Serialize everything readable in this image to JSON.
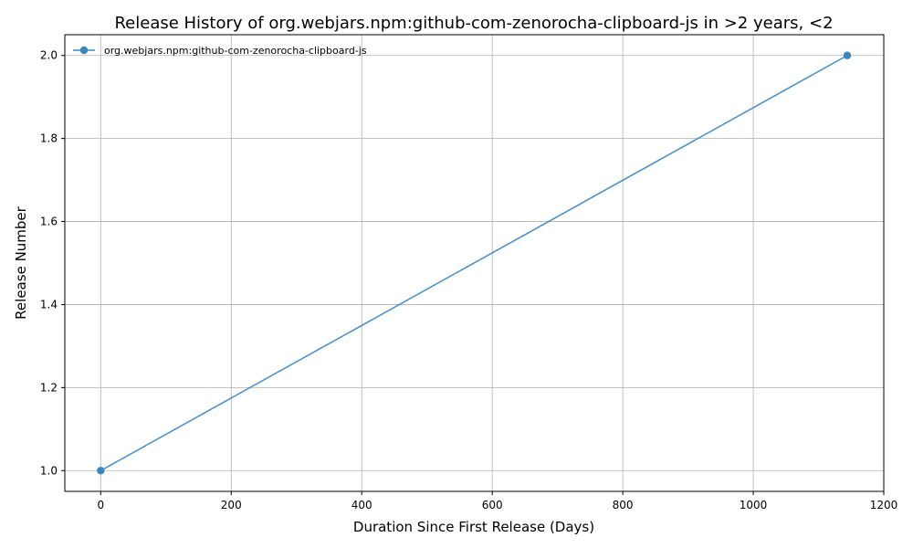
{
  "chart_data": {
    "type": "line",
    "title": "Release History of org.webjars.npm:github-com-zenorocha-clipboard-js in >2 years, <2",
    "xlabel": "Duration Since First Release (Days)",
    "ylabel": "Release Number",
    "xlim": [
      -55,
      1200
    ],
    "ylim": [
      0.95,
      2.05
    ],
    "xticks": [
      0,
      200,
      400,
      600,
      800,
      1000,
      1200
    ],
    "yticks": [
      1.0,
      1.2,
      1.4,
      1.6,
      1.8,
      2.0
    ],
    "xtick_labels": [
      "0",
      "200",
      "400",
      "600",
      "800",
      "1000",
      "1200"
    ],
    "ytick_labels": [
      "1.0",
      "1.2",
      "1.4",
      "1.6",
      "1.8",
      "2.0"
    ],
    "grid": true,
    "legend_position": "top-left",
    "series": [
      {
        "name": "org.webjars.npm:github-com-zenorocha-clipboard-js",
        "color": "#3a87c0",
        "x": [
          0,
          1144
        ],
        "y": [
          1,
          2
        ]
      }
    ]
  }
}
